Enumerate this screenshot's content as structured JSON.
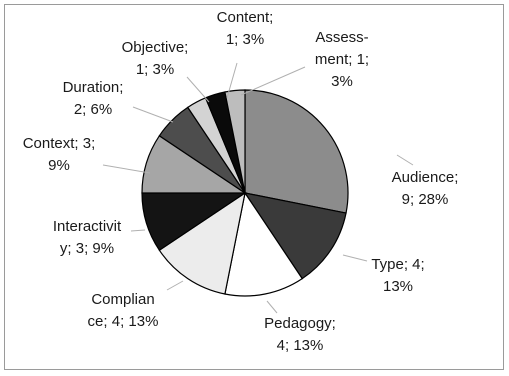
{
  "chart_data": {
    "type": "pie",
    "slices": [
      {
        "name": "Audience",
        "value": 9,
        "percent": 28,
        "label_lines": [
          "Audience;",
          "9; 28%"
        ],
        "color": "#8c8c8c"
      },
      {
        "name": "Type",
        "value": 4,
        "percent": 13,
        "label_lines": [
          "Type; 4;",
          "13%"
        ],
        "color": "#3a3a3a"
      },
      {
        "name": "Pedagogy",
        "value": 4,
        "percent": 13,
        "label_lines": [
          "Pedagogy;",
          "4; 13%"
        ],
        "color": "#ffffff"
      },
      {
        "name": "Compliance",
        "value": 4,
        "percent": 13,
        "label_lines": [
          "Complian",
          "ce; 4; 13%"
        ],
        "color": "#ececec"
      },
      {
        "name": "Interactivity",
        "value": 3,
        "percent": 9,
        "label_lines": [
          "Interactivit",
          "y; 3; 9%"
        ],
        "color": "#141414"
      },
      {
        "name": "Context",
        "value": 3,
        "percent": 9,
        "label_lines": [
          "Context; 3;",
          "9%"
        ],
        "color": "#a6a6a6"
      },
      {
        "name": "Duration",
        "value": 2,
        "percent": 6,
        "label_lines": [
          "Duration;",
          "2; 6%"
        ],
        "color": "#4d4d4d"
      },
      {
        "name": "Objective",
        "value": 1,
        "percent": 3,
        "label_lines": [
          "Objective;",
          "1; 3%"
        ],
        "color": "#d3d3d3"
      },
      {
        "name": "Content",
        "value": 1,
        "percent": 3,
        "label_lines": [
          "Content;",
          "1; 3%"
        ],
        "color": "#0a0a0a"
      },
      {
        "name": "Assessment",
        "value": 1,
        "percent": 3,
        "label_lines": [
          "Assess-",
          "ment; 1;",
          "3%"
        ],
        "color": "#bdbdbd"
      }
    ],
    "title": "",
    "legend": "none"
  }
}
